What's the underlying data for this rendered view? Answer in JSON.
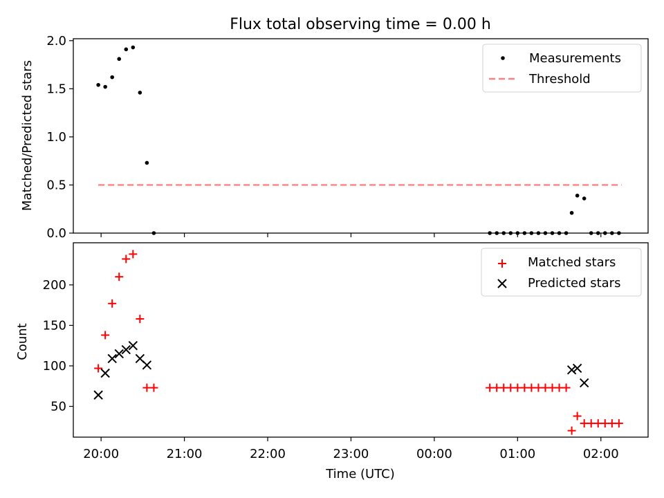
{
  "title": "Flux total observing time = 0.00 h",
  "colors": {
    "measurement": "#000000",
    "threshold": "#ff8080",
    "matched": "#ff0000",
    "predicted": "#000000"
  },
  "chart_data": [
    {
      "type": "scatter",
      "ylabel": "Matched/Predicted stars",
      "ylim": [
        0,
        2.02
      ],
      "yticks": [
        "0.0",
        "0.5",
        "1.0",
        "1.5",
        "2.0"
      ],
      "xlim": [
        "19:40",
        "02:34"
      ],
      "legend": "top-right",
      "legend_entries": [
        "Measurements",
        "Threshold"
      ],
      "threshold": {
        "name": "Threshold",
        "value": 0.5,
        "x_start": "19:58",
        "x_end": "02:15"
      },
      "series": [
        {
          "name": "Measurements",
          "x": [
            "19:58",
            "20:03",
            "20:08",
            "20:13",
            "20:18",
            "20:23",
            "20:28",
            "20:33",
            "20:38",
            "00:40",
            "00:45",
            "00:50",
            "00:55",
            "01:00",
            "01:05",
            "01:10",
            "01:15",
            "01:20",
            "01:25",
            "01:30",
            "01:35",
            "01:39",
            "01:43",
            "01:48",
            "01:53",
            "01:58",
            "02:03",
            "02:08",
            "02:13"
          ],
          "y": [
            1.54,
            1.52,
            1.62,
            1.81,
            1.91,
            1.93,
            1.46,
            0.73,
            0.0,
            0,
            0,
            0,
            0,
            0,
            0,
            0,
            0,
            0,
            0,
            0,
            0,
            0.21,
            0.39,
            0.36,
            0,
            0,
            0,
            0,
            0
          ]
        }
      ]
    },
    {
      "type": "scatter",
      "ylabel": "Count",
      "xlabel": "Time (UTC)",
      "ylim": [
        12,
        252
      ],
      "yticks": [
        "50",
        "100",
        "150",
        "200"
      ],
      "xlim": [
        "19:40",
        "02:34"
      ],
      "xticks": [
        "20:00",
        "21:00",
        "22:00",
        "23:00",
        "00:00",
        "01:00",
        "02:00"
      ],
      "legend": "top-right",
      "legend_entries": [
        "Matched stars",
        "Predicted stars"
      ],
      "series": [
        {
          "name": "Matched stars",
          "x": [
            "19:58",
            "20:03",
            "20:08",
            "20:13",
            "20:18",
            "20:23",
            "20:28",
            "20:33",
            "20:38",
            "00:40",
            "00:45",
            "00:50",
            "00:55",
            "01:00",
            "01:05",
            "01:10",
            "01:15",
            "01:20",
            "01:25",
            "01:30",
            "01:35",
            "01:39",
            "01:43",
            "01:48",
            "01:53",
            "01:58",
            "02:03",
            "02:08",
            "02:13"
          ],
          "y": [
            97,
            138,
            177,
            210,
            232,
            238,
            158,
            73,
            73,
            73,
            73,
            73,
            73,
            73,
            73,
            73,
            73,
            73,
            73,
            73,
            73,
            20,
            38,
            29,
            29,
            29,
            29,
            29,
            29
          ]
        },
        {
          "name": "Predicted stars",
          "x": [
            "19:58",
            "20:03",
            "20:08",
            "20:13",
            "20:18",
            "20:23",
            "20:28",
            "20:33",
            "01:39",
            "01:43",
            "01:48"
          ],
          "y": [
            64,
            91,
            109,
            115,
            120,
            125,
            109,
            101,
            95,
            97,
            79
          ]
        }
      ]
    }
  ]
}
